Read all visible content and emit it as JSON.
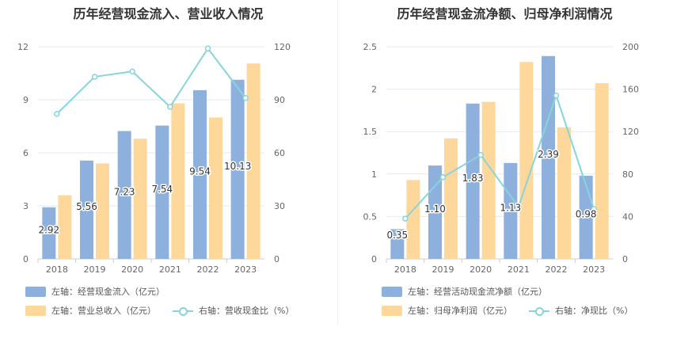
{
  "colors": {
    "bar_primary": "#8eb0dc",
    "bar_secondary": "#fed89b",
    "line": "#86d5dc",
    "grid": "#e6e9ef",
    "tick": "#666666"
  },
  "chart_data": [
    {
      "type": "bar",
      "title": "历年经营现金流入、营业收入情况",
      "categories": [
        "2018",
        "2019",
        "2020",
        "2021",
        "2022",
        "2023"
      ],
      "left_axis": {
        "ticks": [
          "0",
          "3",
          "6",
          "9",
          "12"
        ],
        "ylim": [
          0,
          12
        ]
      },
      "right_axis": {
        "ticks": [
          "0",
          "30",
          "60",
          "90",
          "120"
        ],
        "ylim": [
          0,
          120
        ]
      },
      "series": [
        {
          "name": "左轴：经营现金流入（亿元）",
          "type": "bar",
          "axis": "left",
          "values": [
            2.92,
            5.56,
            7.23,
            7.54,
            9.54,
            10.13
          ],
          "labels": [
            "2.92",
            "5.56",
            "7.23",
            "7.54",
            "9.54",
            "10.13"
          ]
        },
        {
          "name": "左轴：营业总收入（亿元）",
          "type": "bar",
          "axis": "left",
          "values": [
            3.6,
            5.4,
            6.8,
            8.8,
            8.0,
            11.05
          ]
        },
        {
          "name": "右轴：营收现金比（%）",
          "type": "line",
          "axis": "right",
          "values": [
            82,
            103,
            106,
            86,
            119,
            91
          ]
        }
      ],
      "grid": true
    },
    {
      "type": "bar",
      "title": "历年经营现金流净额、归母净利润情况",
      "categories": [
        "2018",
        "2019",
        "2020",
        "2021",
        "2022",
        "2023"
      ],
      "left_axis": {
        "ticks": [
          "0",
          "0.5",
          "1",
          "1.5",
          "2",
          "2.5"
        ],
        "ylim": [
          0,
          2.5
        ]
      },
      "right_axis": {
        "ticks": [
          "0",
          "40",
          "80",
          "120",
          "160",
          "200"
        ],
        "ylim": [
          0,
          200
        ]
      },
      "series": [
        {
          "name": "左轴：经营活动现金流净额（亿元）",
          "type": "bar",
          "axis": "left",
          "values": [
            0.35,
            1.1,
            1.83,
            1.13,
            2.39,
            0.98
          ],
          "labels": [
            "0.35",
            "1.10",
            "1.83",
            "1.13",
            "2.39",
            "0.98"
          ]
        },
        {
          "name": "左轴：归母净利润（亿元）",
          "type": "bar",
          "axis": "left",
          "values": [
            0.93,
            1.42,
            1.85,
            2.32,
            1.55,
            2.07
          ]
        },
        {
          "name": "右轴：净现比（%）",
          "type": "line",
          "axis": "right",
          "values": [
            38,
            77,
            98,
            49,
            154,
            47
          ]
        }
      ],
      "grid": true
    }
  ]
}
